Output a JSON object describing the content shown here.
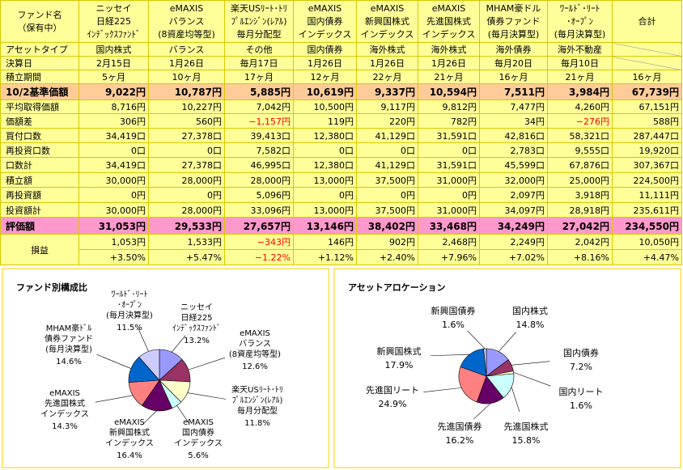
{
  "table": {
    "corner": [
      "ファンド名",
      "（保有中）"
    ],
    "columns": [
      [
        "ニッセイ",
        "日経225",
        "ｲﾝﾃﾞｯｸｽﾌｧﾝﾄﾞ"
      ],
      [
        "eMAXIS",
        "バランス",
        "(8資産均等型)"
      ],
      [
        "楽天USﾘｰﾄ･ﾄﾘ",
        "ﾌﾟﾙｴﾝｼﾞﾝ(ﾚｱﾙ)",
        "毎月分配型"
      ],
      [
        "eMAXIS",
        "国内債券",
        "インデックス"
      ],
      [
        "eMAXIS",
        "新興国株式",
        "インデックス"
      ],
      [
        "eMAXIS",
        "先進国株式",
        "インデックス"
      ],
      [
        "MHAM豪ドル",
        "債券ファンド",
        "(毎月決算型)"
      ],
      [
        "ﾜｰﾙﾄﾞ･ﾘｰﾄ",
        "･ｵｰﾌﾟﾝ",
        "(毎月決算型)"
      ],
      [
        "合計"
      ]
    ],
    "rows": [
      {
        "label": "アセットタイプ",
        "cells": [
          "国内株式",
          "バランス",
          "その他",
          "国内債券",
          "海外株式",
          "海外株式",
          "海外債券",
          "海外不動産",
          null
        ]
      },
      {
        "label": "決算日",
        "cells": [
          "2月15日",
          "1月26日",
          "毎月17日",
          "1月26日",
          "1月26日",
          "1月26日",
          "毎月20日",
          "毎月10日",
          null
        ]
      },
      {
        "label": "積立期間",
        "cells": [
          "5ヶ月",
          "10ヶ月",
          "17ヶ月",
          "12ヶ月",
          "22ヶ月",
          "21ヶ月",
          "16ヶ月",
          "21ヶ月",
          "16ヶ月"
        ]
      },
      {
        "label": "10/2基準価額",
        "cells": [
          "9,022円",
          "10,787円",
          "5,885円",
          "10,619円",
          "9,337円",
          "10,594円",
          "7,511円",
          "3,984円",
          "67,739円"
        ]
      },
      {
        "label": "平均取得価額",
        "cells": [
          "8,716円",
          "10,227円",
          "7,042円",
          "10,500円",
          "9,117円",
          "9,812円",
          "7,477円",
          "4,260円",
          "67,151円"
        ]
      },
      {
        "label": "価額差",
        "cells": [
          "306円",
          "560円",
          "−1,157円",
          "119円",
          "220円",
          "782円",
          "34円",
          "−276円",
          "588円"
        ]
      },
      {
        "label": "買付口数",
        "cells": [
          "34,419口",
          "27,378口",
          "39,413口",
          "12,380口",
          "41,129口",
          "31,591口",
          "42,816口",
          "58,321口",
          "287,447口"
        ]
      },
      {
        "label": "再投資口数",
        "cells": [
          "0口",
          "0口",
          "7,582口",
          "0口",
          "0口",
          "0口",
          "2,783口",
          "9,555口",
          "19,920口"
        ]
      },
      {
        "label": "口数計",
        "cells": [
          "34,419口",
          "27,378口",
          "46,995口",
          "12,380口",
          "41,129口",
          "31,591口",
          "45,599口",
          "67,876口",
          "307,367口"
        ]
      },
      {
        "label": "積立額",
        "cells": [
          "30,000円",
          "28,000円",
          "28,000円",
          "13,000円",
          "37,500円",
          "31,000円",
          "32,000円",
          "25,000円",
          "224,500円"
        ]
      },
      {
        "label": "再投資額",
        "cells": [
          "0円",
          "0円",
          "5,096円",
          "0円",
          "0円",
          "0円",
          "2,097円",
          "3,918円",
          "11,111円"
        ]
      },
      {
        "label": "投資額計",
        "cells": [
          "30,000円",
          "28,000円",
          "33,096円",
          "13,000円",
          "37,500円",
          "31,000円",
          "34,097円",
          "28,918円",
          "235,611円"
        ]
      },
      {
        "label": "評価額",
        "cells": [
          "31,053円",
          "29,533円",
          "27,657円",
          "13,146円",
          "38,402円",
          "33,468円",
          "34,249円",
          "27,042円",
          "234,550円"
        ]
      },
      {
        "label": "損益",
        "cells": [
          "1,053円",
          "1,533円",
          "−343円",
          "146円",
          "902円",
          "2,468円",
          "2,249円",
          "2,042円",
          "10,050円"
        ],
        "cells_2": [
          "+3.50%",
          "+5.47%",
          "−1.22%",
          "+1.12%",
          "+2.40%",
          "+7.96%",
          "+7.02%",
          "+8.16%",
          "+4.47%"
        ]
      }
    ]
  },
  "chart_data": [
    {
      "type": "pie",
      "title": "ファンド別構成比",
      "categories": [
        [
          "ニッセイ",
          "日経225",
          "ｲﾝﾃﾞｯｸｽﾌｧﾝﾄﾞ"
        ],
        [
          "eMAXIS",
          "バランス",
          "(8資産均等型)"
        ],
        [
          "楽天USﾘｰﾄ･ﾄﾘ",
          "ﾌﾟﾙｴﾝｼﾞﾝ(ﾚｱﾙ)",
          "毎月分配型"
        ],
        [
          "eMAXIS",
          "国内債券",
          "インデックス"
        ],
        [
          "eMAXIS",
          "新興国株式",
          "インデックス"
        ],
        [
          "eMAXIS",
          "先進国株式",
          "インデックス"
        ],
        [
          "MHAM豪ﾄﾞﾙ",
          "債券ファンド",
          "(毎月決算型)"
        ],
        [
          "ﾜｰﾙﾄﾞ･ﾘｰﾄ",
          "･ｵｰﾌﾟﾝ",
          "(毎月決算型)"
        ]
      ],
      "values": [
        13.2,
        12.6,
        11.8,
        5.6,
        16.4,
        14.3,
        14.6,
        11.5
      ],
      "value_labels": [
        "13.2%",
        "12.6%",
        "11.8%",
        "5.6%",
        "16.4%",
        "14.3%",
        "14.6%",
        "11.5%"
      ],
      "colors": [
        "#9999ff",
        "#993366",
        "#ffffcc",
        "#ccffff",
        "#660066",
        "#ff8080",
        "#0066cc",
        "#ccccff"
      ]
    },
    {
      "type": "pie",
      "title": "アセットアロケーション",
      "categories": [
        "国内株式",
        "国内債券",
        "国内リート",
        "先進国株式",
        "先進国債券",
        "先進国リート",
        "新興国株式",
        "新興国債券"
      ],
      "values": [
        14.8,
        7.2,
        1.6,
        15.8,
        16.2,
        24.9,
        17.9,
        1.6
      ],
      "value_labels": [
        "14.8%",
        "7.2%",
        "1.6%",
        "15.8%",
        "16.2%",
        "24.9%",
        "17.9%",
        "1.6%"
      ],
      "colors": [
        "#9999ff",
        "#993366",
        "#ffffcc",
        "#ccffff",
        "#660066",
        "#ff8080",
        "#0066cc",
        "#ccccff"
      ]
    }
  ]
}
